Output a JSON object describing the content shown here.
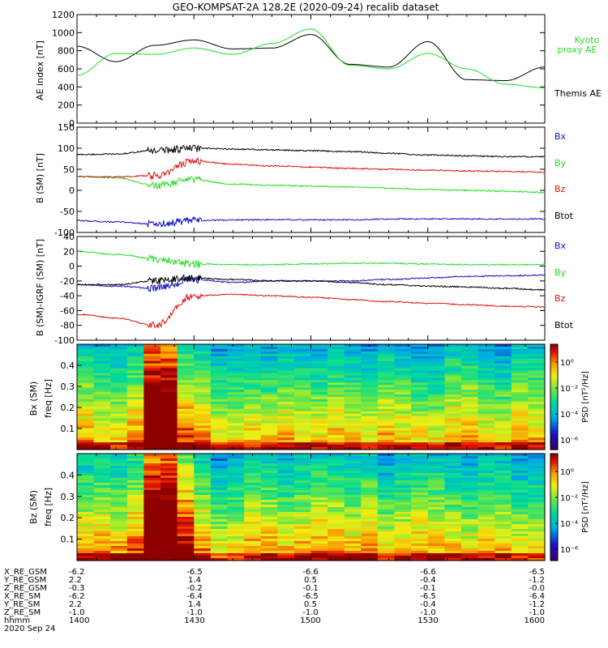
{
  "title": "GEO-KOMPSAT-2A 128.2E (2020-09-24) recalib dataset",
  "colors": {
    "black": "#000000",
    "green": "#22dd22",
    "red": "#dd1111",
    "blue": "#1111cc"
  },
  "chart_data": [
    {
      "type": "line",
      "ylabel": "AE index [nT]",
      "ylim": [
        0,
        1200
      ],
      "yticks": [
        "0",
        "200",
        "400",
        "600",
        "800",
        "1000",
        "1200"
      ],
      "x": [
        0,
        10,
        20,
        30,
        40,
        50,
        60,
        70,
        80,
        90,
        100,
        110,
        120
      ],
      "series": [
        {
          "name": "Themis AE",
          "color": "#000000",
          "values": [
            850,
            680,
            860,
            920,
            820,
            830,
            980,
            650,
            620,
            900,
            480,
            470,
            620
          ]
        },
        {
          "name": "Kyoto proxy AE",
          "color": "#22dd22",
          "values": [
            530,
            770,
            760,
            830,
            760,
            880,
            1040,
            640,
            600,
            770,
            600,
            430,
            390
          ]
        }
      ]
    },
    {
      "type": "line",
      "ylabel": "B (SM) [nT]",
      "ylim": [
        -100,
        150
      ],
      "yticks": [
        "-100",
        "-50",
        "0",
        "50",
        "100",
        "150"
      ],
      "x": [
        0,
        10,
        20,
        30,
        40,
        50,
        60,
        70,
        80,
        90,
        100,
        110,
        120
      ],
      "series": [
        {
          "name": "Bx",
          "color": "#1111cc",
          "values": [
            -72,
            -75,
            -80,
            -72,
            -70,
            -70,
            -70,
            -70,
            -68,
            -68,
            -68,
            -68,
            -68
          ]
        },
        {
          "name": "By",
          "color": "#22dd22",
          "values": [
            33,
            30,
            12,
            25,
            15,
            12,
            10,
            8,
            5,
            2,
            0,
            -2,
            -5
          ]
        },
        {
          "name": "Bz",
          "color": "#dd1111",
          "values": [
            33,
            32,
            35,
            70,
            62,
            58,
            55,
            52,
            50,
            48,
            46,
            45,
            43
          ]
        },
        {
          "name": "Btot",
          "color": "#000000",
          "values": [
            85,
            86,
            95,
            100,
            98,
            96,
            94,
            92,
            88,
            84,
            82,
            80,
            80
          ]
        }
      ]
    },
    {
      "type": "line",
      "ylabel": "B (SM)-IGRF (SM) [nT]",
      "ylim": [
        -100,
        40
      ],
      "yticks": [
        "-100",
        "-80",
        "-60",
        "-40",
        "-20",
        "0",
        "20",
        "40"
      ],
      "x": [
        0,
        10,
        20,
        30,
        40,
        50,
        60,
        70,
        80,
        90,
        100,
        110,
        120
      ],
      "series": [
        {
          "name": "Bx",
          "color": "#1111cc",
          "values": [
            -25,
            -27,
            -30,
            -18,
            -22,
            -20,
            -20,
            -20,
            -18,
            -16,
            -14,
            -13,
            -12
          ]
        },
        {
          "name": "By",
          "color": "#22dd22",
          "values": [
            20,
            16,
            10,
            3,
            2,
            2,
            3,
            4,
            4,
            3,
            2,
            2,
            2
          ]
        },
        {
          "name": "Bz",
          "color": "#dd1111",
          "values": [
            -65,
            -70,
            -80,
            -40,
            -38,
            -40,
            -42,
            -45,
            -48,
            -50,
            -52,
            -54,
            -55
          ]
        },
        {
          "name": "Btot",
          "color": "#000000",
          "values": [
            -25,
            -25,
            -20,
            -16,
            -18,
            -20,
            -20,
            -22,
            -25,
            -27,
            -28,
            -30,
            -32
          ]
        }
      ]
    },
    {
      "type": "heatmap",
      "ylabel": "Bx (SM)",
      "ylabel2": "freq [Hz]",
      "yticks": [
        "0.1",
        "0.2",
        "0.3",
        "0.4"
      ],
      "cbar_label": "PSD [nT²/Hz]",
      "cbar_ticks": [
        "10⁰",
        "10⁻²",
        "10⁻⁴",
        "10⁻⁶"
      ]
    },
    {
      "type": "heatmap",
      "ylabel": "Bz (SM)",
      "ylabel2": "freq [Hz]",
      "yticks": [
        "0.1",
        "0.2",
        "0.3",
        "0.4"
      ],
      "cbar_label": "PSD [nT²/Hz]",
      "cbar_ticks": [
        "10⁰",
        "10⁻²",
        "10⁻⁴",
        "10⁻⁶"
      ]
    }
  ],
  "labels": {
    "p1_themis": "Themis AE",
    "p1_kyoto_1": "Kyoto",
    "p1_kyoto_2": "proxy AE",
    "p2": [
      "Bx",
      "By",
      "Bz",
      "Btot"
    ],
    "p3": [
      "Bx",
      "By",
      "Bz",
      "Btot"
    ]
  },
  "footer": {
    "row_labels": [
      "X_RE_GSM",
      "Y_RE_GSM",
      "Z_RE_GSM",
      "X_RE_SM",
      "Y_RE_SM",
      "Z_RE_SM",
      "hhmm",
      "2020 Sep 24"
    ],
    "columns": [
      [
        "-6.2",
        "2.2",
        "-0.3",
        "-6.2",
        "2.2",
        "-1.0",
        "1400"
      ],
      [
        "-6.5",
        "1.4",
        "-0.2",
        "-6.4",
        "1.4",
        "-1.0",
        "1430"
      ],
      [
        "-6.6",
        "0.5",
        "-0.1",
        "-6.5",
        "0.5",
        "-1.0",
        "1500"
      ],
      [
        "-6.6",
        "-0.4",
        "-0.1",
        "-6.5",
        "-0.4",
        "-1.0",
        "1530"
      ],
      [
        "-6.5",
        "-1.2",
        "-0.0",
        "-6.4",
        "-1.2",
        "-1.0",
        "1600"
      ]
    ]
  }
}
